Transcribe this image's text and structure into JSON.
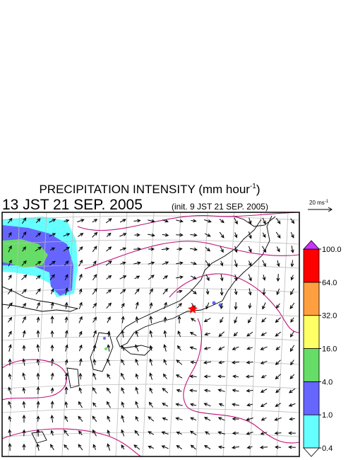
{
  "title": {
    "text": "PRECIPITATION INTENSITY (mm hour",
    "sup": "-1",
    "close": ")"
  },
  "valid_time": "13 JST 21 SEP. 2005",
  "init_time": "(init. 9 JST 21 SEP. 2005)",
  "wind_scale": {
    "text": "20 ms",
    "sup": "-1"
  },
  "colorbar": {
    "levels": [
      0.4,
      {
        "value": 1,
        "label": "1.0"
      },
      {
        "value": 4,
        "label": "4.0"
      },
      {
        "value": 16,
        "label": "16.0"
      },
      {
        "value": 32,
        "label": "32.0"
      },
      {
        "value": 64,
        "label": "64.0"
      },
      {
        "value": 100,
        "label": "100.0"
      }
    ],
    "colors": [
      "#66ffff",
      "#6666ff",
      "#66dd66",
      "#ffff66",
      "#ffa040",
      "#ff0000"
    ],
    "over_color": "#cc33ff",
    "under_color": "#ffffff"
  }
}
